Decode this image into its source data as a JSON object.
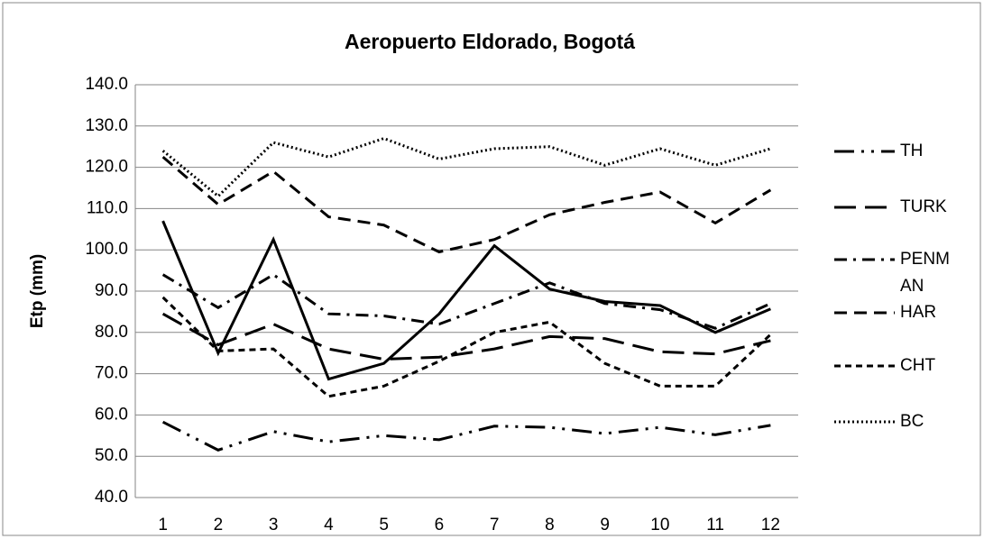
{
  "chart_data": {
    "type": "line",
    "title": "Aeropuerto Eldorado, Bogotá",
    "y_label": "Etp (mm)",
    "categories": [
      "1",
      "2",
      "3",
      "4",
      "5",
      "6",
      "7",
      "8",
      "9",
      "10",
      "11",
      "12"
    ],
    "ylim": [
      40,
      140
    ],
    "yticks": [
      {
        "value": 40,
        "label": "40.0"
      },
      {
        "value": 50,
        "label": "50.0"
      },
      {
        "value": 60,
        "label": "60.0"
      },
      {
        "value": 70,
        "label": "70.0"
      },
      {
        "value": 80,
        "label": "80.0"
      },
      {
        "value": 90,
        "label": "90.0"
      },
      {
        "value": 100,
        "label": "100.0"
      },
      {
        "value": 110,
        "label": "110.0"
      },
      {
        "value": 120,
        "label": "120.0"
      },
      {
        "value": 130,
        "label": "130.0"
      },
      {
        "value": 140,
        "label": "140.0"
      }
    ],
    "grid": true,
    "series": [
      {
        "name": "TH",
        "color": "#000000",
        "style": "dash-dot-dot",
        "values": [
          58.3,
          51.5,
          56,
          53.5,
          55,
          54,
          57.3,
          57,
          55.5,
          57,
          55.2,
          57.5
        ]
      },
      {
        "name": "TURK",
        "color": "#000000",
        "style": "long-dash",
        "values": [
          84.5,
          77,
          82,
          76,
          73.5,
          74,
          76,
          79,
          78.5,
          75.3,
          74.8,
          78
        ]
      },
      {
        "name": "PENMAN",
        "color": "#000000",
        "style": "dash-dot",
        "values": [
          94,
          86,
          94,
          84.5,
          84,
          82,
          87,
          92,
          87,
          85.5,
          81,
          87
        ]
      },
      {
        "name": "HAR",
        "color": "#000000",
        "style": "dash",
        "values": [
          122.5,
          111,
          119,
          108,
          106,
          99.5,
          102.5,
          108.5,
          111.5,
          114,
          106.5,
          114.5
        ]
      },
      {
        "name": "CHT",
        "color": "#000000",
        "style": "short-dash",
        "values": [
          88.5,
          75.5,
          76,
          64.5,
          67,
          73,
          80,
          82.5,
          72.5,
          67,
          67,
          79.5
        ]
      },
      {
        "name": "BC",
        "color": "#000000",
        "style": "dot",
        "values": [
          124,
          113,
          126,
          122.5,
          127,
          122,
          124.5,
          125,
          120.5,
          124.5,
          120.5,
          124.5
        ]
      },
      {
        "color": "#000000",
        "style": "solid",
        "values": [
          107,
          75,
          102.5,
          68.7,
          72.5,
          84.5,
          101,
          90.5,
          87.5,
          86.5,
          80,
          85.7
        ]
      }
    ]
  }
}
